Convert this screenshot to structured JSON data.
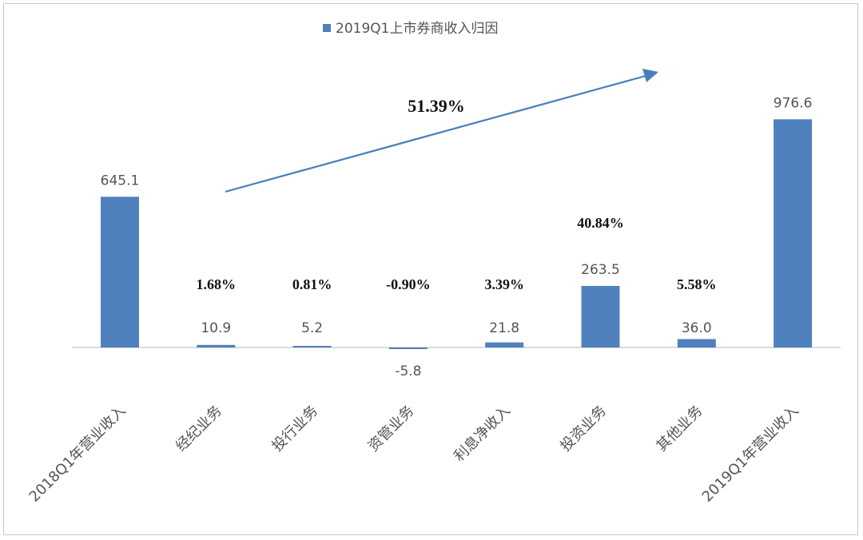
{
  "chart_data": {
    "type": "bar",
    "categories": [
      "2018Q1年营业收入",
      "经纪业务",
      "投行业务",
      "资管业务",
      "利息净收入",
      "投资业务",
      "其他业务",
      "2019Q1年营业收入"
    ],
    "series": [
      {
        "name": "2019Q1上市券商收入归因",
        "values": [
          645.1,
          10.9,
          5.2,
          -5.8,
          21.8,
          263.5,
          36.0,
          976.6
        ],
        "value_labels": [
          "645.1",
          "10.9",
          "5.2",
          "-5.8",
          "21.8",
          "263.5",
          "36.0",
          "976.6"
        ]
      }
    ],
    "percent_labels": [
      "",
      "1.68%",
      "0.81%",
      "-0.90%",
      "3.39%",
      "40.84%",
      "5.58%",
      ""
    ],
    "annotation": "51.39%",
    "ylim": [
      -50,
      1050
    ],
    "grid": false,
    "legend_position": "top-center",
    "bar_color": "#4f81bd",
    "arrow_color": "#4a7ebb"
  }
}
